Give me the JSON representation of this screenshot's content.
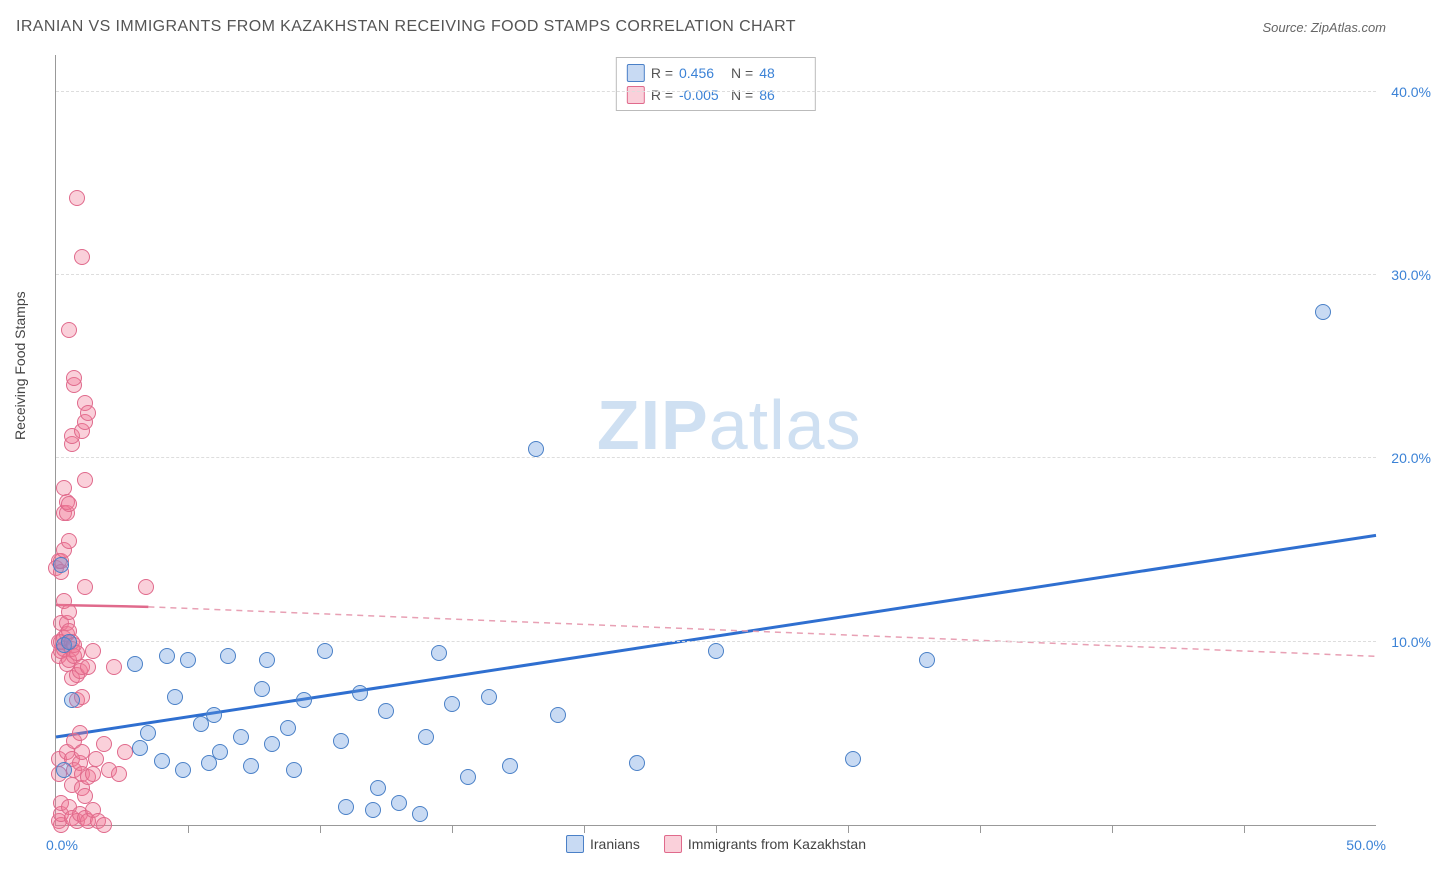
{
  "title": "IRANIAN VS IMMIGRANTS FROM KAZAKHSTAN RECEIVING FOOD STAMPS CORRELATION CHART",
  "source": "Source: ZipAtlas.com",
  "ylabel": "Receiving Food Stamps",
  "watermark_a": "ZIP",
  "watermark_b": "atlas",
  "chart": {
    "type": "scatter",
    "xlim": [
      0,
      50
    ],
    "ylim": [
      0,
      42
    ],
    "x_min_label": "0.0%",
    "x_max_label": "50.0%",
    "ytick_values": [
      10,
      20,
      30,
      40
    ],
    "ytick_labels": [
      "10.0%",
      "20.0%",
      "30.0%",
      "40.0%"
    ],
    "xtick_values": [
      5,
      10,
      15,
      20,
      25,
      30,
      35,
      40,
      45
    ],
    "grid_color": "#dddddd",
    "axis_color": "#999999",
    "background_color": "#ffffff",
    "marker_radius": 7,
    "series": [
      {
        "name": "Iranians",
        "label": "Iranians",
        "fill_color": "rgba(96,150,220,0.35)",
        "stroke_color": "#4a80c7",
        "R": "0.456",
        "N": "48",
        "trend": {
          "x1": 0,
          "y1": 4.8,
          "x2": 50,
          "y2": 15.8,
          "color": "#2f6fd0",
          "width": 3,
          "dash": "none"
        },
        "trend_dashed_extension": null,
        "points": [
          [
            0.2,
            14.2
          ],
          [
            0.3,
            3.0
          ],
          [
            0.3,
            9.8
          ],
          [
            0.5,
            10.0
          ],
          [
            0.6,
            6.8
          ],
          [
            3.0,
            8.8
          ],
          [
            3.2,
            4.2
          ],
          [
            3.5,
            5.0
          ],
          [
            4.0,
            3.5
          ],
          [
            4.2,
            9.2
          ],
          [
            4.5,
            7.0
          ],
          [
            4.8,
            3.0
          ],
          [
            5.0,
            9.0
          ],
          [
            5.5,
            5.5
          ],
          [
            5.8,
            3.4
          ],
          [
            6.0,
            6.0
          ],
          [
            6.2,
            4.0
          ],
          [
            6.5,
            9.2
          ],
          [
            7.0,
            4.8
          ],
          [
            7.4,
            3.2
          ],
          [
            7.8,
            7.4
          ],
          [
            8.0,
            9.0
          ],
          [
            8.2,
            4.4
          ],
          [
            8.8,
            5.3
          ],
          [
            9.0,
            3.0
          ],
          [
            9.4,
            6.8
          ],
          [
            10.2,
            9.5
          ],
          [
            10.8,
            4.6
          ],
          [
            11.0,
            1.0
          ],
          [
            11.5,
            7.2
          ],
          [
            12.0,
            0.8
          ],
          [
            12.2,
            2.0
          ],
          [
            12.5,
            6.2
          ],
          [
            13.0,
            1.2
          ],
          [
            14.0,
            4.8
          ],
          [
            14.5,
            9.4
          ],
          [
            15.0,
            6.6
          ],
          [
            15.6,
            2.6
          ],
          [
            16.4,
            7.0
          ],
          [
            17.2,
            3.2
          ],
          [
            18.2,
            20.5
          ],
          [
            19.0,
            6.0
          ],
          [
            22.0,
            3.4
          ],
          [
            25.0,
            9.5
          ],
          [
            30.2,
            3.6
          ],
          [
            33.0,
            9.0
          ],
          [
            48.0,
            28.0
          ],
          [
            13.8,
            0.6
          ]
        ]
      },
      {
        "name": "Immigrants from Kazakhstan",
        "label": "Immigrants from Kazakhstan",
        "fill_color": "rgba(240,120,150,0.35)",
        "stroke_color": "#e06a8c",
        "R": "-0.005",
        "N": "86",
        "trend": {
          "x1": 0,
          "y1": 12.0,
          "x2": 3.5,
          "y2": 11.9,
          "color": "#e06a8c",
          "width": 2.5,
          "dash": "none"
        },
        "trend_dashed_extension": {
          "x1": 3.5,
          "y1": 11.9,
          "x2": 50,
          "y2": 9.2,
          "color": "#e8a0b4",
          "width": 1.5,
          "dash": "6,5"
        },
        "points": [
          [
            0.0,
            14.0
          ],
          [
            0.1,
            0.2
          ],
          [
            0.1,
            2.8
          ],
          [
            0.1,
            3.6
          ],
          [
            0.1,
            9.2
          ],
          [
            0.1,
            10.0
          ],
          [
            0.1,
            14.4
          ],
          [
            0.2,
            0.0
          ],
          [
            0.2,
            0.6
          ],
          [
            0.2,
            1.2
          ],
          [
            0.2,
            9.5
          ],
          [
            0.2,
            10.0
          ],
          [
            0.2,
            11.0
          ],
          [
            0.2,
            13.8
          ],
          [
            0.2,
            14.4
          ],
          [
            0.3,
            9.6
          ],
          [
            0.3,
            10.2
          ],
          [
            0.3,
            12.2
          ],
          [
            0.3,
            15.0
          ],
          [
            0.3,
            17.0
          ],
          [
            0.3,
            18.4
          ],
          [
            0.4,
            4.0
          ],
          [
            0.4,
            8.8
          ],
          [
            0.4,
            10.4
          ],
          [
            0.4,
            11.0
          ],
          [
            0.4,
            17.0
          ],
          [
            0.4,
            17.6
          ],
          [
            0.5,
            1.0
          ],
          [
            0.5,
            9.0
          ],
          [
            0.5,
            10.6
          ],
          [
            0.5,
            11.6
          ],
          [
            0.5,
            15.5
          ],
          [
            0.5,
            17.5
          ],
          [
            0.5,
            27.0
          ],
          [
            0.6,
            0.4
          ],
          [
            0.6,
            2.2
          ],
          [
            0.6,
            3.6
          ],
          [
            0.6,
            8.0
          ],
          [
            0.6,
            9.6
          ],
          [
            0.6,
            10.0
          ],
          [
            0.6,
            20.8
          ],
          [
            0.6,
            21.2
          ],
          [
            0.7,
            3.0
          ],
          [
            0.7,
            4.6
          ],
          [
            0.7,
            9.2
          ],
          [
            0.7,
            9.8
          ],
          [
            0.7,
            24.0
          ],
          [
            0.7,
            24.4
          ],
          [
            0.8,
            0.2
          ],
          [
            0.8,
            6.8
          ],
          [
            0.8,
            8.2
          ],
          [
            0.8,
            9.4
          ],
          [
            0.8,
            34.2
          ],
          [
            0.9,
            0.6
          ],
          [
            0.9,
            3.4
          ],
          [
            0.9,
            5.0
          ],
          [
            0.9,
            8.4
          ],
          [
            1.0,
            2.0
          ],
          [
            1.0,
            2.8
          ],
          [
            1.0,
            4.0
          ],
          [
            1.0,
            7.0
          ],
          [
            1.0,
            8.6
          ],
          [
            1.0,
            21.5
          ],
          [
            1.0,
            31.0
          ],
          [
            1.1,
            0.4
          ],
          [
            1.1,
            1.6
          ],
          [
            1.1,
            13.0
          ],
          [
            1.1,
            18.8
          ],
          [
            1.1,
            22.0
          ],
          [
            1.1,
            23.0
          ],
          [
            1.2,
            0.2
          ],
          [
            1.2,
            2.6
          ],
          [
            1.2,
            8.6
          ],
          [
            1.2,
            22.5
          ],
          [
            1.4,
            0.8
          ],
          [
            1.4,
            2.8
          ],
          [
            1.4,
            9.5
          ],
          [
            1.5,
            3.6
          ],
          [
            1.6,
            0.2
          ],
          [
            1.8,
            0.0
          ],
          [
            1.8,
            4.4
          ],
          [
            2.0,
            3.0
          ],
          [
            2.2,
            8.6
          ],
          [
            2.4,
            2.8
          ],
          [
            2.6,
            4.0
          ],
          [
            3.4,
            13.0
          ]
        ]
      }
    ]
  },
  "stats_labels": {
    "R": "R =",
    "N": "N ="
  },
  "legend": {
    "series1": "Iranians",
    "series2": "Immigrants from Kazakhstan"
  }
}
